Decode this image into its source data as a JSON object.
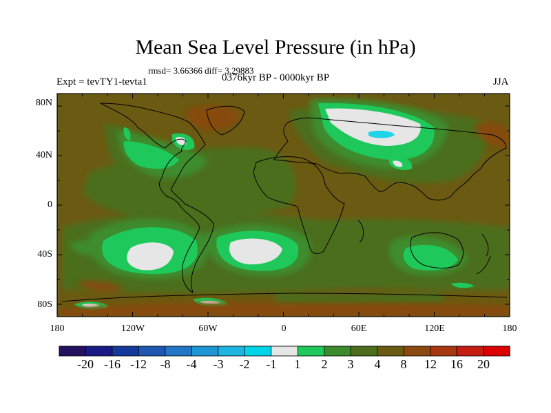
{
  "title": "Mean Sea Level Pressure (in hPa)",
  "stats": "rmsd= 3.66366 diff= 3.29883",
  "experiment": "Expt = tevTY1-tevta1",
  "period": "0376kyr BP - 0000kyr BP",
  "season": "JJA",
  "lat_ticks": [
    "80N",
    "40N",
    "0",
    "40S",
    "80S"
  ],
  "lon_ticks": [
    "180",
    "120W",
    "60W",
    "0",
    "60E",
    "120E",
    "180"
  ],
  "colorbar": {
    "labels": [
      "-20",
      "-16",
      "-12",
      "-8",
      "-4",
      "-3",
      "-2",
      "-1",
      "1",
      "2",
      "3",
      "4",
      "8",
      "12",
      "16",
      "20"
    ],
    "colors": [
      "#24125e",
      "#1a1a85",
      "#143a9c",
      "#1f56b0",
      "#2476c4",
      "#1e96d4",
      "#1eb4e0",
      "#00d4e8",
      "#e6e6e6",
      "#1ec85a",
      "#3c8c2e",
      "#4c6e1e",
      "#6b5a12",
      "#8a4a10",
      "#a8360e",
      "#c41c10",
      "#dd0000"
    ]
  },
  "map_data": {
    "type": "filled-contour",
    "variable": "mean sea level pressure difference",
    "units": "hPa",
    "lon_range": [
      -180,
      180
    ],
    "lat_range": [
      -90,
      90
    ]
  }
}
